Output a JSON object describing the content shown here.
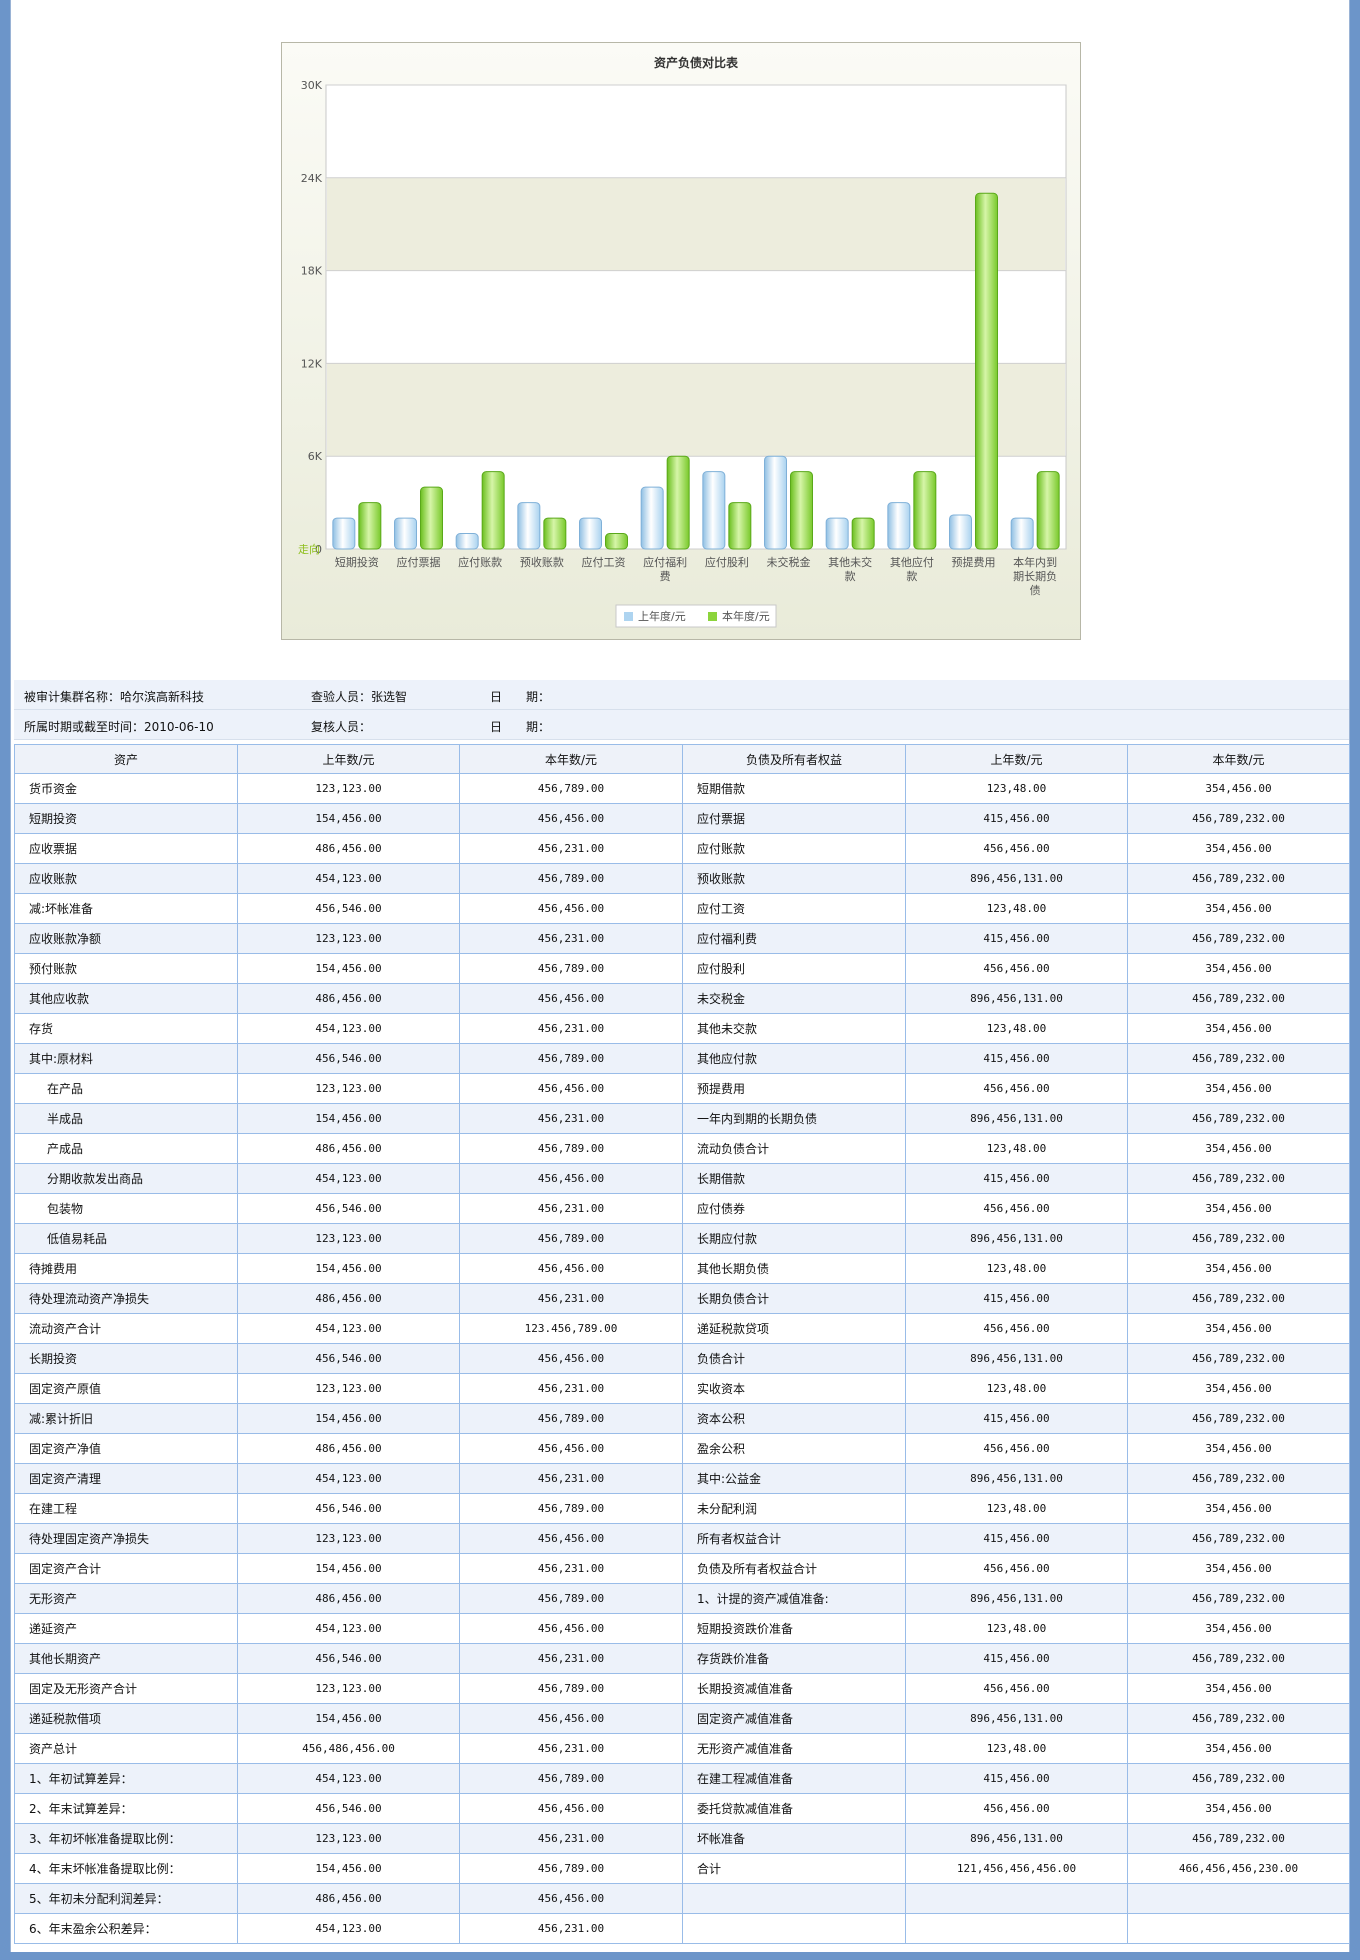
{
  "chart_data": {
    "type": "bar",
    "title": "资产负债对比表",
    "categories": [
      "短期投资",
      "应付票据",
      "应付账款",
      "预收账款",
      "应付工资",
      "应付福利费",
      "应付股利",
      "未交税金",
      "其他未交款",
      "其他应付款",
      "预提费用",
      "本年内到期长期负债"
    ],
    "category_lines": [
      [
        "短期投资"
      ],
      [
        "应付票据"
      ],
      [
        "应付账款"
      ],
      [
        "预收账款"
      ],
      [
        "应付工资"
      ],
      [
        "应付福利",
        "费"
      ],
      [
        "应付股利"
      ],
      [
        "未交税金"
      ],
      [
        "其他未交",
        "款"
      ],
      [
        "其他应付",
        "款"
      ],
      [
        "预提费用"
      ],
      [
        "本年内到",
        "期长期负",
        "债"
      ]
    ],
    "series": [
      {
        "name": "上年度/元",
        "color": "#aed4f0",
        "values": [
          2000,
          2000,
          1000,
          3000,
          2000,
          4000,
          5000,
          6000,
          2000,
          3000,
          2200,
          2000
        ]
      },
      {
        "name": "本年度/元",
        "color": "#8cd43c",
        "values": [
          3000,
          4000,
          5000,
          2000,
          1000,
          6000,
          3000,
          5000,
          2000,
          5000,
          23000,
          5000
        ]
      }
    ],
    "ylim": [
      0,
      30000
    ],
    "yticks": [
      "0",
      "6K",
      "12K",
      "18K",
      "24K",
      "30K"
    ],
    "y_axis_title": "走向",
    "legend_position": "bottom"
  },
  "meta": {
    "audit_group": "被审计集群名称：哈尔滨高新科技",
    "inspector": "查验人员：张选智",
    "date1": "日　　期：",
    "period": "所属时期或截至时间：2010-06-10",
    "reviewer": "复核人员：",
    "date2": "日　　期："
  },
  "table": {
    "headers": [
      "资产",
      "上年数/元",
      "本年数/元",
      "负债及所有者权益",
      "上年数/元",
      "本年数/元"
    ],
    "rows": [
      [
        "货币资金",
        "123,123.00",
        "456,789.00",
        "短期借款",
        "123,48.00",
        "354,456.00"
      ],
      [
        "短期投资",
        "154,456.00",
        "456,456.00",
        "应付票据",
        "415,456.00",
        "456,789,232.00"
      ],
      [
        "应收票据",
        "486,456.00",
        "456,231.00",
        "应付账款",
        "456,456.00",
        "354,456.00"
      ],
      [
        "应收账款",
        "454,123.00",
        "456,789.00",
        "预收账款",
        "896,456,131.00",
        "456,789,232.00"
      ],
      [
        "减:坏帐准备",
        "456,546.00",
        "456,456.00",
        "应付工资",
        "123,48.00",
        "354,456.00"
      ],
      [
        "应收账款净额",
        "123,123.00",
        "456,231.00",
        "应付福利费",
        "415,456.00",
        "456,789,232.00"
      ],
      [
        "预付账款",
        "154,456.00",
        "456,789.00",
        "应付股利",
        "456,456.00",
        "354,456.00"
      ],
      [
        "其他应收款",
        "486,456.00",
        "456,456.00",
        "未交税金",
        "896,456,131.00",
        "456,789,232.00"
      ],
      [
        "存货",
        "454,123.00",
        "456,231.00",
        "其他未交款",
        "123,48.00",
        "354,456.00"
      ],
      [
        "其中:原材料",
        "456,546.00",
        "456,789.00",
        "其他应付款",
        "415,456.00",
        "456,789,232.00"
      ],
      [
        "在产品",
        "123,123.00",
        "456,456.00",
        "预提费用",
        "456,456.00",
        "354,456.00"
      ],
      [
        "半成品",
        "154,456.00",
        "456,231.00",
        "一年内到期的长期负债",
        "896,456,131.00",
        "456,789,232.00"
      ],
      [
        "产成品",
        "486,456.00",
        "456,789.00",
        "流动负债合计",
        "123,48.00",
        "354,456.00"
      ],
      [
        "分期收款发出商品",
        "454,123.00",
        "456,456.00",
        "长期借款",
        "415,456.00",
        "456,789,232.00"
      ],
      [
        "包装物",
        "456,546.00",
        "456,231.00",
        "应付债券",
        "456,456.00",
        "354,456.00"
      ],
      [
        "低值易耗品",
        "123,123.00",
        "456,789.00",
        "长期应付款",
        "896,456,131.00",
        "456,789,232.00"
      ],
      [
        "待摊费用",
        "154,456.00",
        "456,456.00",
        "其他长期负债",
        "123,48.00",
        "354,456.00"
      ],
      [
        "待处理流动资产净损失",
        "486,456.00",
        "456,231.00",
        "长期负债合计",
        "415,456.00",
        "456,789,232.00"
      ],
      [
        "流动资产合计",
        "454,123.00",
        "123.456,789.00",
        "递延税款贷项",
        "456,456.00",
        "354,456.00"
      ],
      [
        "长期投资",
        "456,546.00",
        "456,456.00",
        "负债合计",
        "896,456,131.00",
        "456,789,232.00"
      ],
      [
        "固定资产原值",
        "123,123.00",
        "456,231.00",
        "实收资本",
        "123,48.00",
        "354,456.00"
      ],
      [
        "减:累计折旧",
        "154,456.00",
        "456,789.00",
        "资本公积",
        "415,456.00",
        "456,789,232.00"
      ],
      [
        "固定资产净值",
        "486,456.00",
        "456,456.00",
        "盈余公积",
        "456,456.00",
        "354,456.00"
      ],
      [
        "固定资产清理",
        "454,123.00",
        "456,231.00",
        "其中:公益金",
        "896,456,131.00",
        "456,789,232.00"
      ],
      [
        "在建工程",
        "456,546.00",
        "456,789.00",
        "未分配利润",
        "123,48.00",
        "354,456.00"
      ],
      [
        "待处理固定资产净损失",
        "123,123.00",
        "456,456.00",
        "所有者权益合计",
        "415,456.00",
        "456,789,232.00"
      ],
      [
        "固定资产合计",
        "154,456.00",
        "456,231.00",
        "负债及所有者权益合计",
        "456,456.00",
        "354,456.00"
      ],
      [
        "无形资产",
        "486,456.00",
        "456,789.00",
        "1、计提的资产减值准备:",
        "896,456,131.00",
        "456,789,232.00"
      ],
      [
        "递延资产",
        "454,123.00",
        "456,456.00",
        "短期投资跌价准备",
        "123,48.00",
        "354,456.00"
      ],
      [
        "其他长期资产",
        "456,546.00",
        "456,231.00",
        "存货跌价准备",
        "415,456.00",
        "456,789,232.00"
      ],
      [
        "固定及无形资产合计",
        "123,123.00",
        "456,789.00",
        "长期投资减值准备",
        "456,456.00",
        "354,456.00"
      ],
      [
        "递延税款借项",
        "154,456.00",
        "456,456.00",
        "固定资产减值准备",
        "896,456,131.00",
        "456,789,232.00"
      ],
      [
        "资产总计",
        "456,486,456.00",
        "456,231.00",
        "无形资产减值准备",
        "123,48.00",
        "354,456.00"
      ],
      [
        "1、年初试算差异：",
        "454,123.00",
        "456,789.00",
        "在建工程减值准备",
        "415,456.00",
        "456,789,232.00"
      ],
      [
        "2、年末试算差异：",
        "456,546.00",
        "456,456.00",
        "委托贷款减值准备",
        "456,456.00",
        "354,456.00"
      ],
      [
        "3、年初坏帐准备提取比例：",
        "123,123.00",
        "456,231.00",
        "坏帐准备",
        "896,456,131.00",
        "456,789,232.00"
      ],
      [
        "4、年末坏帐准备提取比例：",
        "154,456.00",
        "456,789.00",
        "合计",
        "121,456,456,456.00",
        "466,456,456,230.00"
      ],
      [
        "5、年初未分配利润差异：",
        "486,456.00",
        "456,456.00",
        "",
        "",
        ""
      ],
      [
        "6、年末盈余公积差异：",
        "454,123.00",
        "456,231.00",
        "",
        "",
        ""
      ]
    ]
  }
}
